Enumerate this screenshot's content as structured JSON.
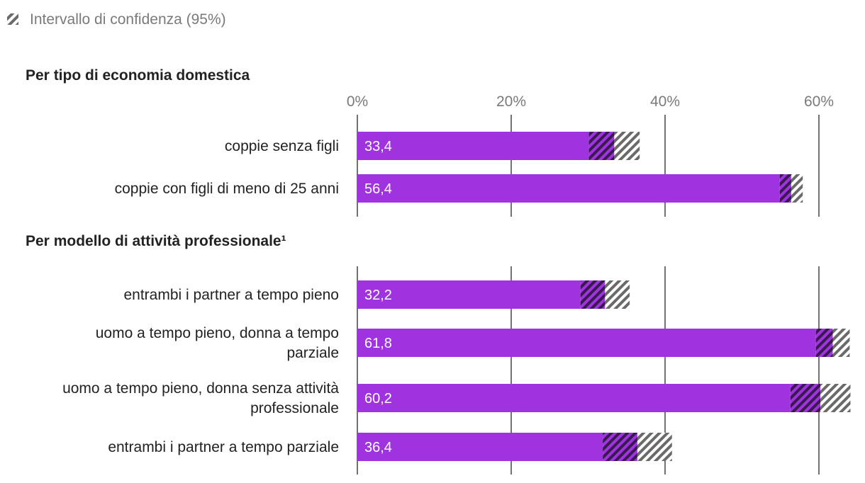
{
  "legend": {
    "ci_label": "Intervallo di confidenza (95%)"
  },
  "colors": {
    "bar": "#a033e0",
    "ci_hatch": "#6a6a6a",
    "grid": "#444444"
  },
  "chart_data": {
    "type": "bar",
    "orientation": "horizontal",
    "xlim": [
      0,
      64
    ],
    "x_ticks": [
      {
        "value": 0,
        "label": "0%"
      },
      {
        "value": 20,
        "label": "20%"
      },
      {
        "value": 40,
        "label": "40%"
      },
      {
        "value": 60,
        "label": "60%"
      }
    ],
    "grid": true,
    "groups": [
      {
        "title": "Per tipo di economia domestica",
        "items": [
          {
            "label": [
              "coppie senza figli"
            ],
            "value": 33.4,
            "value_label": "33,4",
            "ci": [
              30.1,
              36.7
            ]
          },
          {
            "label": [
              "coppie con figli di meno di 25 anni"
            ],
            "value": 56.4,
            "value_label": "56,4",
            "ci": [
              54.9,
              57.9
            ]
          }
        ]
      },
      {
        "title": "Per modello di attività professionale¹",
        "items": [
          {
            "label": [
              "entrambi i partner a tempo pieno"
            ],
            "value": 32.2,
            "value_label": "32,2",
            "ci": [
              29.0,
              35.4
            ]
          },
          {
            "label": [
              "uomo a tempo pieno, donna a tempo",
              "parziale"
            ],
            "value": 61.8,
            "value_label": "61,8",
            "ci": [
              59.6,
              64.0
            ]
          },
          {
            "label": [
              "uomo a tempo pieno, donna senza attività",
              "professionale"
            ],
            "value": 60.2,
            "value_label": "60,2",
            "ci": [
              56.3,
              64.1
            ]
          },
          {
            "label": [
              "entrambi i partner a tempo parziale"
            ],
            "value": 36.4,
            "value_label": "36,4",
            "ci": [
              31.9,
              40.9
            ]
          }
        ]
      }
    ]
  }
}
